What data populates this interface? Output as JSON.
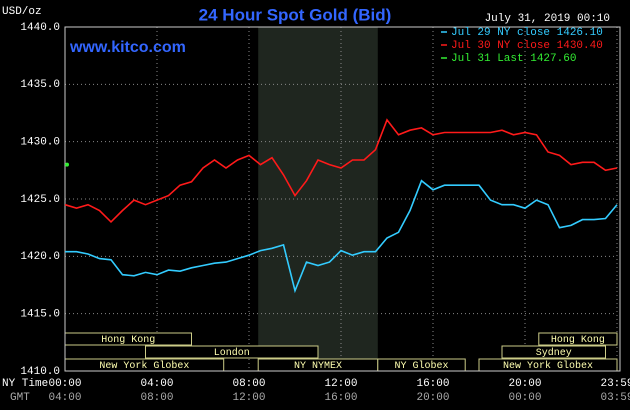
{
  "chart_data": {
    "type": "line",
    "title": "24 Hour Spot Gold (Bid)",
    "site": "www.kitco.com",
    "ylabel": "USD/oz",
    "date": "July 31, 2019 00:10",
    "xlabel": "NY Time",
    "xlabel_gmt": "GMT",
    "x": [
      0,
      0.5,
      1,
      1.5,
      2,
      2.5,
      3,
      3.5,
      4,
      4.5,
      5,
      5.5,
      6,
      6.5,
      7,
      7.5,
      8,
      8.5,
      9,
      9.5,
      10,
      10.5,
      11,
      11.5,
      12,
      12.5,
      13,
      13.5,
      14,
      14.5,
      15,
      15.5,
      16,
      16.5,
      17,
      17.5,
      18,
      18.5,
      19,
      19.5,
      20,
      20.5,
      21,
      21.5,
      22,
      22.5,
      23,
      23.5,
      24
    ],
    "series": [
      {
        "name": "Jul 29 NY close 1426.10",
        "color": "#33ccff",
        "values": [
          1420.4,
          1420.4,
          1420.2,
          1419.8,
          1419.7,
          1418.4,
          1418.3,
          1418.6,
          1418.4,
          1418.8,
          1418.7,
          1419.0,
          1419.2,
          1419.4,
          1419.5,
          1419.8,
          1420.1,
          1420.5,
          1420.7,
          1421.0,
          1417.0,
          1419.5,
          1419.2,
          1419.5,
          1420.5,
          1420.1,
          1420.4,
          1420.4,
          1421.6,
          1422.1,
          1424.0,
          1426.6,
          1425.8,
          1426.2,
          1426.2,
          1426.2,
          1426.2,
          1424.9,
          1424.5,
          1424.5,
          1424.2,
          1424.9,
          1424.5,
          1422.5,
          1422.7,
          1423.2,
          1423.2,
          1423.3,
          1424.5
        ]
      },
      {
        "name": "Jul 30 NY close 1430.40",
        "color": "#ff1a1a",
        "values": [
          1424.5,
          1424.2,
          1424.5,
          1424.0,
          1423.0,
          1424.0,
          1424.9,
          1424.5,
          1424.9,
          1425.3,
          1426.2,
          1426.5,
          1427.7,
          1428.4,
          1427.7,
          1428.4,
          1428.8,
          1428.0,
          1428.6,
          1427.1,
          1425.3,
          1426.6,
          1428.4,
          1428.0,
          1427.7,
          1428.4,
          1428.4,
          1429.3,
          1431.9,
          1430.6,
          1431.0,
          1431.2,
          1430.6,
          1430.8,
          1430.8,
          1430.8,
          1430.8,
          1430.8,
          1431.0,
          1430.6,
          1430.8,
          1430.6,
          1429.1,
          1428.8,
          1428.0,
          1428.2,
          1428.2,
          1427.5,
          1427.7
        ]
      },
      {
        "name": "Jul 31 Last 1427.60",
        "color": "#33ee33",
        "x": [
          0
        ],
        "values": [
          1428.0
        ]
      }
    ],
    "xlim": [
      0,
      24
    ],
    "xticks": [
      {
        "value": 0,
        "label": "00:00"
      },
      {
        "value": 4,
        "label": "04:00"
      },
      {
        "value": 8,
        "label": "08:00"
      },
      {
        "value": 12,
        "label": "12:00"
      },
      {
        "value": 16,
        "label": "16:00"
      },
      {
        "value": 20,
        "label": "20:00"
      },
      {
        "value": 24,
        "label": "23:59"
      }
    ],
    "xticks_gmt": [
      "04:00",
      "08:00",
      "12:00",
      "16:00",
      "20:00",
      "00:00",
      "03:59"
    ],
    "ylim": [
      1410,
      1440
    ],
    "yticks": [
      {
        "value": 1410,
        "label": "1410.0"
      },
      {
        "value": 1415,
        "label": "1415.0"
      },
      {
        "value": 1420,
        "label": "1420.0"
      },
      {
        "value": 1425,
        "label": "1425.0"
      },
      {
        "value": 1430,
        "label": "1430.0"
      },
      {
        "value": 1435,
        "label": "1435.0"
      },
      {
        "value": 1440,
        "label": "1440.0"
      }
    ],
    "grid": true,
    "highlight": [
      8.4,
      13.6
    ],
    "sessions": [
      [
        {
          "name": "Hong Kong",
          "start": 0,
          "end": 5.5
        },
        {
          "name": "Hong Kong",
          "start": 20.6,
          "end": 24
        }
      ],
      [
        {
          "name": "London",
          "start": 3.5,
          "end": 11.0
        },
        {
          "name": "Sydney",
          "start": 19.0,
          "end": 23.5
        }
      ],
      [
        {
          "name": "New York Globex",
          "start": 0,
          "end": 6.9
        },
        {
          "name": "NY NYMEX",
          "start": 8.4,
          "end": 13.6
        },
        {
          "name": "NY Globex",
          "start": 13.6,
          "end": 17.4
        },
        {
          "name": "New York Globex",
          "start": 18.0,
          "end": 24
        }
      ]
    ]
  }
}
